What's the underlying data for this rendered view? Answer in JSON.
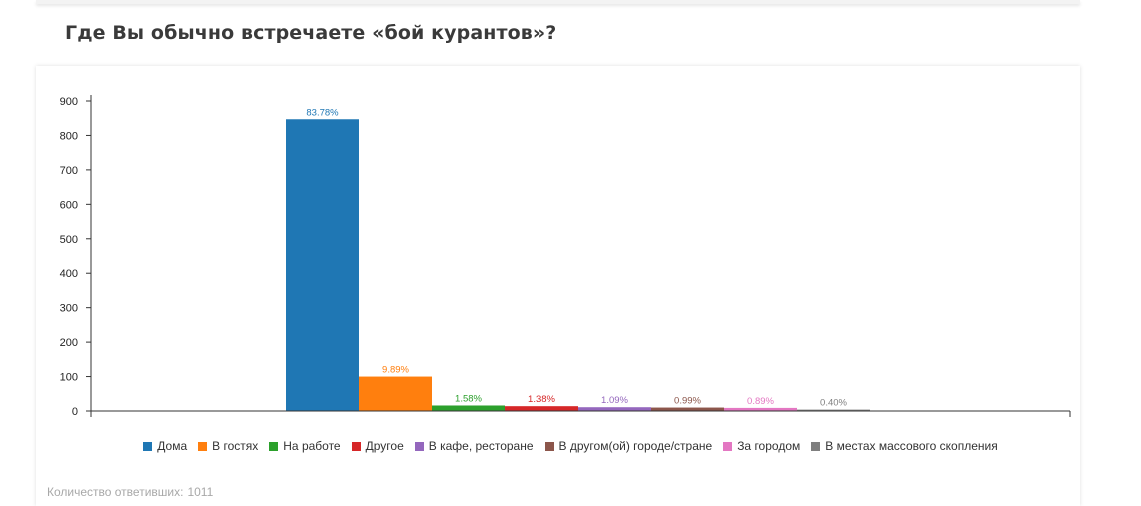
{
  "question": {
    "title": "Где Вы обычно встречаете «бой курантов»?"
  },
  "footer": {
    "respondents_label": "Количество ответивших:",
    "respondents_count": "1011"
  },
  "chart_data": {
    "type": "bar",
    "title": "",
    "xlabel": "",
    "ylabel": "",
    "ylim": [
      0,
      900
    ],
    "yticks": [
      0,
      100,
      200,
      300,
      400,
      500,
      600,
      700,
      800,
      900
    ],
    "grid": false,
    "legend_position": "bottom",
    "series": [
      {
        "name": "Дома",
        "value": 847,
        "label": "83.78%",
        "color": "#1f77b4"
      },
      {
        "name": "В гостях",
        "value": 100,
        "label": "9.89%",
        "color": "#ff7f0e"
      },
      {
        "name": "На работе",
        "value": 16,
        "label": "1.58%",
        "color": "#2ca02c"
      },
      {
        "name": "Другое",
        "value": 14,
        "label": "1.38%",
        "color": "#d62728"
      },
      {
        "name": "В кафе, ресторане",
        "value": 11,
        "label": "1.09%",
        "color": "#9467bd"
      },
      {
        "name": "В другом(ой) городе/стране",
        "value": 10,
        "label": "0.99%",
        "color": "#8c564b"
      },
      {
        "name": "За городом",
        "value": 9,
        "label": "0.89%",
        "color": "#e377c2"
      },
      {
        "name": "В местах массового скопления",
        "value": 4,
        "label": "0.40%",
        "color": "#7f7f7f"
      }
    ]
  }
}
